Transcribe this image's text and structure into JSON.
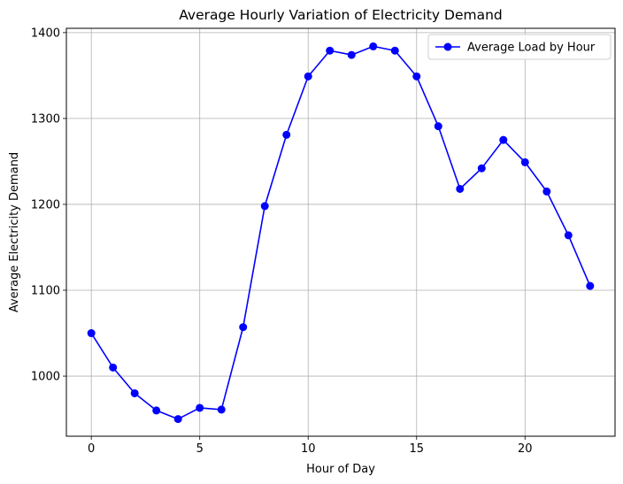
{
  "chart_data": {
    "type": "line",
    "title": "Average Hourly Variation of Electricity Demand",
    "xlabel": "Hour of Day",
    "ylabel": "Average Electricity Demand",
    "xlim": [
      -1.15,
      24.15
    ],
    "ylim": [
      930,
      1405
    ],
    "xticks": [
      0,
      5,
      10,
      15,
      20
    ],
    "yticks": [
      1000,
      1100,
      1200,
      1300,
      1400
    ],
    "grid": true,
    "legend_position": "top-right",
    "series": [
      {
        "name": "Average Load by Hour",
        "color": "#0000ff",
        "marker": "circle",
        "x": [
          0,
          1,
          2,
          3,
          4,
          5,
          6,
          7,
          8,
          9,
          10,
          11,
          12,
          13,
          14,
          15,
          16,
          17,
          18,
          19,
          20,
          21,
          22,
          23
        ],
        "values": [
          1050,
          1010,
          980,
          960,
          950,
          963,
          961,
          1057,
          1198,
          1281,
          1349,
          1379,
          1374,
          1384,
          1379,
          1349,
          1291,
          1218,
          1242,
          1275,
          1249,
          1215,
          1164,
          1105
        ]
      }
    ]
  }
}
